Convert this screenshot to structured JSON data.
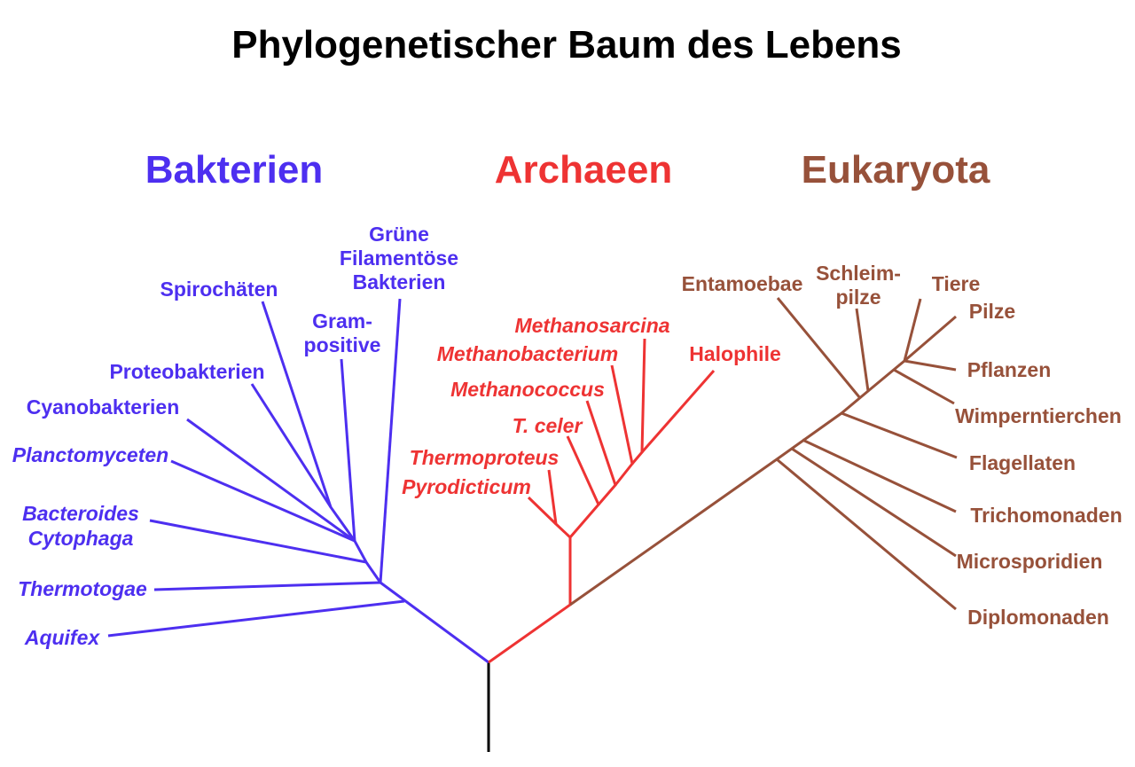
{
  "title": "Phylogenetischer Baum des Lebens",
  "colors": {
    "bacteria": "#4d2ff0",
    "archaea": "#ee3333",
    "eukaryota": "#97513a",
    "root": "#000000"
  },
  "groups": {
    "bacteria": "Bakterien",
    "archaea": "Archaeen",
    "eukaryota": "Eukaryota"
  },
  "bacteria": {
    "green_filamentous": [
      "Grüne",
      "Filamentöse",
      "Bakterien"
    ],
    "spirochaeten": "Spirochäten",
    "gram_positive": [
      "Gram-",
      "positive"
    ],
    "proteobakterien": "Proteobakterien",
    "cyanobakterien": "Cyanobakterien",
    "planctomyceten": "Planctomyceten",
    "bacteroides": [
      "Bacteroides",
      "Cytophaga"
    ],
    "thermotogae": "Thermotogae",
    "aquifex": "Aquifex"
  },
  "archaea": {
    "methanosarcina": "Methanosarcina",
    "methanobacterium": "Methanobacterium",
    "halophile": "Halophile",
    "methanococcus": "Methanococcus",
    "t_celer": "T. celer",
    "thermoproteus": "Thermoproteus",
    "pyrodicticum": "Pyrodicticum"
  },
  "eukaryota": {
    "entamoebae": "Entamoebae",
    "schleimpilze": [
      "Schleim-",
      "pilze"
    ],
    "tiere": "Tiere",
    "pilze": "Pilze",
    "pflanzen": "Pflanzen",
    "wimperntierchen": "Wimperntierchen",
    "flagellaten": "Flagellaten",
    "trichomonaden": "Trichomonaden",
    "microsporidien": "Microsporidien",
    "diplomonaden": "Diplomonaden"
  }
}
